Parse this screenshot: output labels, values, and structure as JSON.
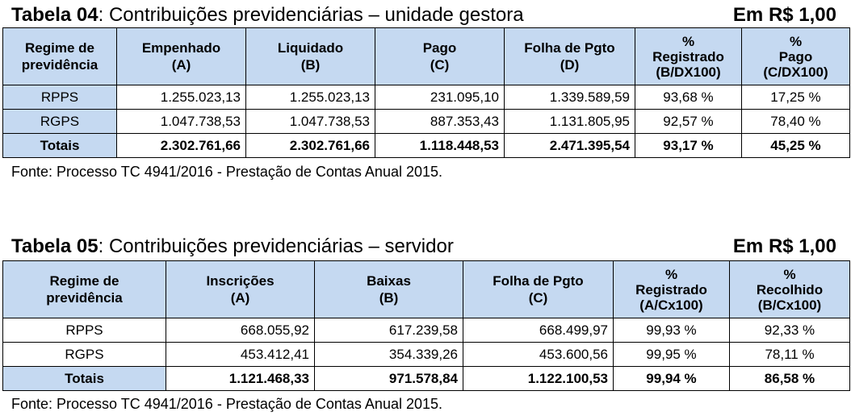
{
  "t04": {
    "title_bold": "Tabela 04",
    "title_rest": ": Contribuições previdenciárias – unidade gestora",
    "unit": "Em R$ 1,00",
    "headers": [
      [
        "Regime de",
        "previdência",
        ""
      ],
      [
        "Empenhado",
        "(A)",
        ""
      ],
      [
        "Liquidado",
        "(B)",
        ""
      ],
      [
        "Pago",
        "(C)",
        ""
      ],
      [
        "Folha de Pgto",
        "(D)",
        ""
      ],
      [
        "%",
        "Registrado",
        "(B/DX100)"
      ],
      [
        "%",
        "Pago",
        "(C/DX100)"
      ]
    ],
    "rows": [
      [
        "RPPS",
        "1.255.023,13",
        "1.255.023,13",
        "231.095,10",
        "1.339.589,59",
        "93,68 %",
        "17,25 %"
      ],
      [
        "RGPS",
        "1.047.738,53",
        "1.047.738,53",
        "887.353,43",
        "1.131.805,95",
        "92,57 %",
        "78,40 %"
      ],
      [
        "Totais",
        "2.302.761,66",
        "2.302.761,66",
        "1.118.448,53",
        "2.471.395,54",
        "93,17 %",
        "45,25 %"
      ]
    ],
    "fonte": "Fonte: Processo TC 4941/2016 - Prestação de Contas Anual 2015."
  },
  "t05": {
    "title_bold": "Tabela 05",
    "title_rest": ": Contribuições previdenciárias – servidor",
    "unit": "Em R$ 1,00",
    "headers": [
      [
        "Regime de",
        "previdência",
        ""
      ],
      [
        "Inscrições",
        "(A)",
        ""
      ],
      [
        "Baixas",
        "(B)",
        ""
      ],
      [
        "Folha de Pgto",
        "(C)",
        ""
      ],
      [
        "%",
        "Registrado",
        "(A/Cx100)"
      ],
      [
        "%",
        "Recolhido",
        "(B/Cx100)"
      ]
    ],
    "rows": [
      [
        "RPPS",
        "668.055,92",
        "617.239,58",
        "668.499,97",
        "99,93 %",
        "92,33 %"
      ],
      [
        "RGPS",
        "453.412,41",
        "354.339,26",
        "453.600,56",
        "99,95 %",
        "78,11 %"
      ],
      [
        "Totais",
        "1.121.468,33",
        "971.578,84",
        "1.122.100,53",
        "99,94 %",
        "86,58 %"
      ]
    ],
    "fonte": "Fonte: Processo TC 4941/2016 - Prestação de Contas Anual 2015."
  }
}
